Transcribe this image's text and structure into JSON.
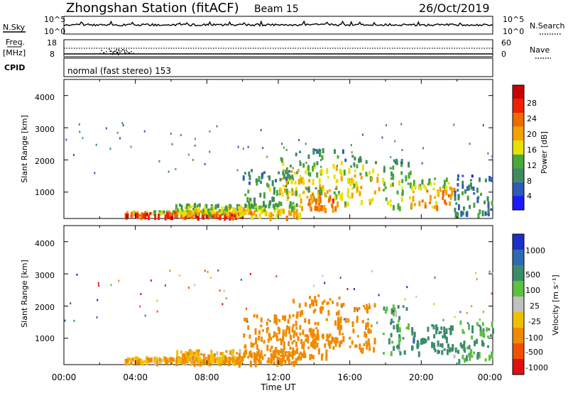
{
  "header": {
    "station": "Zhongshan Station (fitACF)",
    "beam": "Beam 15",
    "date": "26/Oct/2019"
  },
  "noise_panel": {
    "left_label": "N.Sky",
    "right_label": "N.Search",
    "left_ticks": [
      "10^5",
      "10^0"
    ],
    "right_ticks": [
      "10^5",
      "10^0"
    ]
  },
  "freq_panel": {
    "left_label_line1": "Freq.",
    "left_label_line2": "[MHz]",
    "left_ticks": [
      "18",
      "8"
    ],
    "right_label": "Nave",
    "right_ticks": [
      "60",
      "0"
    ]
  },
  "cpid_panel": {
    "label": "CPID",
    "text": "normal (fast stereo) 153"
  },
  "power_panel": {
    "ylabel": "Slant Range [km]",
    "yticks": [
      "1000",
      "2000",
      "3000",
      "4000"
    ],
    "colorbar_label": "Power [dB]",
    "colorbar_ticks": [
      "4",
      "8",
      "12",
      "16",
      "20",
      "24",
      "28"
    ],
    "colors": [
      "#1a1aff",
      "#2e5ab8",
      "#3f8a60",
      "#48a838",
      "#e8e000",
      "#f3a000",
      "#f06a00",
      "#f02000",
      "#c80000"
    ]
  },
  "velocity_panel": {
    "ylabel": "Slant Range [km]",
    "yticks": [
      "1000",
      "2000",
      "3000",
      "4000"
    ],
    "colorbar_label": "Velocity [m s⁻¹]",
    "colorbar_ticks": [
      "1000",
      "500",
      "100",
      "25",
      "-25",
      "-100",
      "-500",
      "-1000"
    ],
    "colors": [
      "#1a30c8",
      "#2e6ab0",
      "#3c8c6a",
      "#5cc040",
      "#c0c0c0",
      "#f0c000",
      "#f08a00",
      "#f05000",
      "#e01010"
    ]
  },
  "x_axis": {
    "label": "Time UT",
    "ticks": [
      "00:00",
      "04:00",
      "08:00",
      "12:00",
      "16:00",
      "20:00",
      "00:00"
    ]
  },
  "chart_data": {
    "type": "heatmap",
    "x_range_hours": [
      0,
      24
    ],
    "y_range_km": [
      180,
      4500
    ],
    "y_grid_ticks": [
      1000,
      2000,
      3000,
      4000
    ],
    "regions": [
      {
        "t0": 3.4,
        "t1": 10.0,
        "r0": 220,
        "r1": 380,
        "power": 26,
        "velocity": -100
      },
      {
        "t0": 6.2,
        "t1": 9.8,
        "r0": 300,
        "r1": 600,
        "power": 16,
        "velocity": -100
      },
      {
        "t0": 9.6,
        "t1": 13.2,
        "r0": 200,
        "r1": 600,
        "power": 18,
        "velocity": -300
      },
      {
        "t0": 10.0,
        "t1": 13.0,
        "r0": 500,
        "r1": 1700,
        "power": 10,
        "velocity": -300
      },
      {
        "t0": 12.0,
        "t1": 15.6,
        "r0": 800,
        "r1": 2300,
        "power": 16,
        "velocity": -300
      },
      {
        "t0": 13.2,
        "t1": 15.2,
        "r0": 400,
        "r1": 1100,
        "power": 22,
        "velocity": -300
      },
      {
        "t0": 15.2,
        "t1": 17.6,
        "r0": 600,
        "r1": 2100,
        "power": 16,
        "velocity": -300
      },
      {
        "t0": 17.8,
        "t1": 19.4,
        "r0": 500,
        "r1": 2000,
        "power": 14,
        "velocity": 100
      },
      {
        "t0": 19.4,
        "t1": 21.8,
        "r0": 500,
        "r1": 1400,
        "power": 20,
        "velocity": 300
      },
      {
        "t0": 21.8,
        "t1": 24.0,
        "r0": 250,
        "r1": 1500,
        "power": 8,
        "velocity": 100
      }
    ]
  }
}
